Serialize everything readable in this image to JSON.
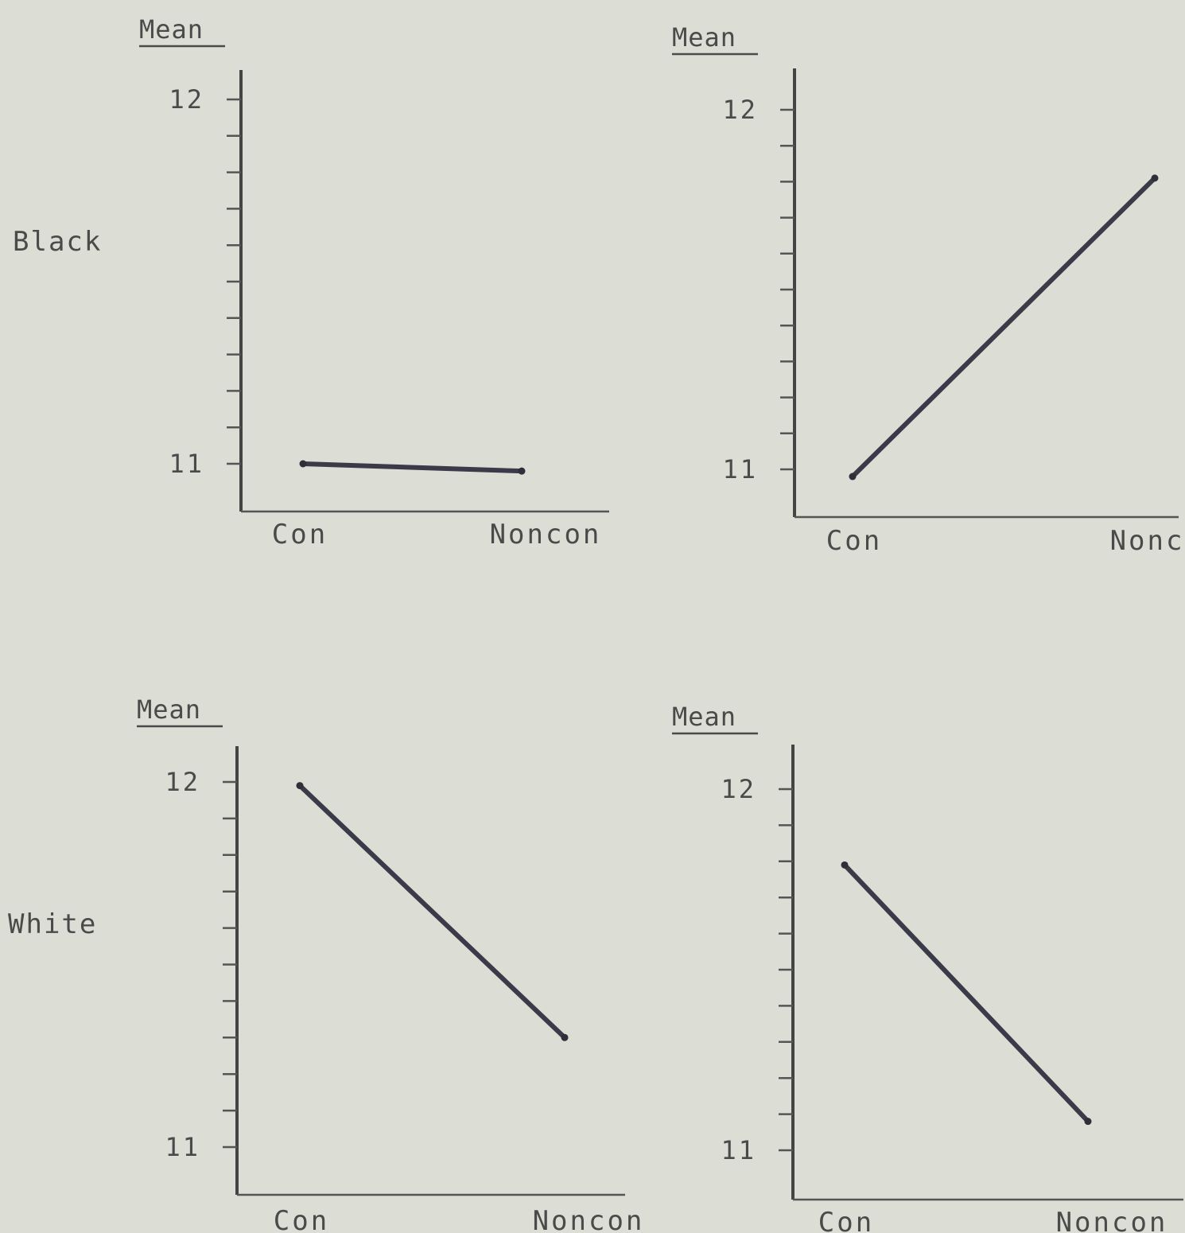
{
  "row_labels": [
    "Black",
    "White"
  ],
  "chart_data": [
    {
      "type": "line",
      "ylabel": "Mean",
      "categories": [
        "Con",
        "Noncon"
      ],
      "yticks": [
        "12",
        "11"
      ],
      "ylim": [
        10.87,
        12.1
      ],
      "series": [
        {
          "values": [
            11.0,
            10.98
          ]
        }
      ]
    },
    {
      "type": "line",
      "ylabel": "Mean",
      "categories": [
        "Con",
        "Noncon"
      ],
      "yticks": [
        "12",
        "11"
      ],
      "ylim": [
        10.87,
        12.1
      ],
      "series": [
        {
          "values": [
            10.98,
            11.81
          ]
        }
      ]
    },
    {
      "type": "line",
      "ylabel": "Mean",
      "categories": [
        "Con",
        "Noncon"
      ],
      "yticks": [
        "12",
        "11"
      ],
      "ylim": [
        10.87,
        12.1
      ],
      "series": [
        {
          "values": [
            11.99,
            11.3
          ]
        }
      ]
    },
    {
      "type": "line",
      "ylabel": "Mean",
      "categories": [
        "Con",
        "Noncon"
      ],
      "yticks": [
        "12",
        "11"
      ],
      "ylim": [
        10.87,
        12.1
      ],
      "series": [
        {
          "values": [
            11.79,
            11.08
          ]
        }
      ]
    }
  ]
}
